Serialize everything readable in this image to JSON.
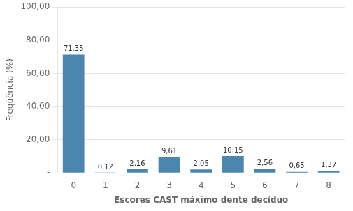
{
  "chart_data": {
    "type": "bar",
    "categories": [
      "0",
      "1",
      "2",
      "3",
      "4",
      "5",
      "6",
      "7",
      "8"
    ],
    "values": [
      71.35,
      0.12,
      2.16,
      9.61,
      2.05,
      10.15,
      2.56,
      0.65,
      1.37
    ],
    "value_labels": [
      "71,35",
      "0,12",
      "2,16",
      "9,61",
      "2,05",
      "10,15",
      "2,56",
      "0,65",
      "1,37"
    ],
    "data_labels": true,
    "color": "#4a86ae",
    "x_label": "Escores CAST máximo dente decíduo",
    "y_label": "Freqüência (%)",
    "ylim": [
      0,
      100
    ],
    "yticks": [
      {
        "value": 0,
        "label": "-"
      },
      {
        "value": 20,
        "label": "20,00"
      },
      {
        "value": 40,
        "label": "40,00"
      },
      {
        "value": 60,
        "label": "60,00"
      },
      {
        "value": 80,
        "label": "80,00"
      },
      {
        "value": 100,
        "label": "100,00"
      }
    ],
    "grid": true
  }
}
